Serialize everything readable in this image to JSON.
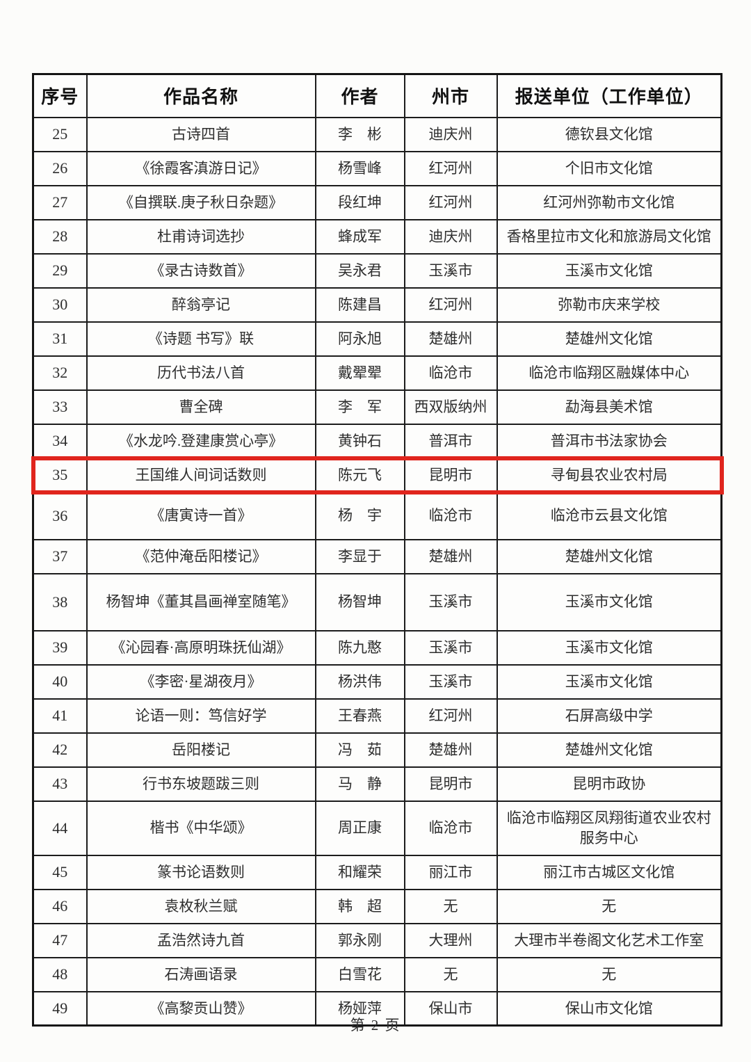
{
  "colors": {
    "highlight_border": "#e0251d"
  },
  "table": {
    "headers": [
      "序号",
      "作品名称",
      "作者",
      "州市",
      "报送单位（工作单位）"
    ],
    "highlighted_no": "35",
    "rows": [
      {
        "no": "25",
        "work": "古诗四首",
        "author": "李　彬",
        "city": "迪庆州",
        "unit": "德钦县文化馆"
      },
      {
        "no": "26",
        "work": "《徐霞客滇游日记》",
        "author": "杨雪峰",
        "city": "红河州",
        "unit": "个旧市文化馆"
      },
      {
        "no": "27",
        "work": "《自撰联.庚子秋日杂题》",
        "author": "段红坤",
        "city": "红河州",
        "unit": "红河州弥勒市文化馆"
      },
      {
        "no": "28",
        "work": "杜甫诗词选抄",
        "author": "蜂成军",
        "city": "迪庆州",
        "unit": "香格里拉市文化和旅游局文化馆"
      },
      {
        "no": "29",
        "work": "《录古诗数首》",
        "author": "吴永君",
        "city": "玉溪市",
        "unit": "玉溪市文化馆"
      },
      {
        "no": "30",
        "work": "醉翁亭记",
        "author": "陈建昌",
        "city": "红河州",
        "unit": "弥勒市庆来学校"
      },
      {
        "no": "31",
        "work": "《诗题 书写》联",
        "author": "阿永旭",
        "city": "楚雄州",
        "unit": "楚雄州文化馆"
      },
      {
        "no": "32",
        "work": "历代书法八首",
        "author": "戴翚翚",
        "city": "临沧市",
        "unit": "临沧市临翔区融媒体中心"
      },
      {
        "no": "33",
        "work": "曹全碑",
        "author": "李　军",
        "city": "西双版纳州",
        "unit": "勐海县美术馆"
      },
      {
        "no": "34",
        "work": "《水龙吟.登建康赏心亭》",
        "author": "黄钟石",
        "city": "普洱市",
        "unit": "普洱市书法家协会"
      },
      {
        "no": "35",
        "work": "王国维人间词话数则",
        "author": "陈元飞",
        "city": "昆明市",
        "unit": "寻甸县农业农村局"
      },
      {
        "no": "36",
        "work": "《唐寅诗一首》",
        "author": "杨　宇",
        "city": "临沧市",
        "unit": "临沧市云县文化馆"
      },
      {
        "no": "37",
        "work": "《范仲淹岳阳楼记》",
        "author": "李显于",
        "city": "楚雄州",
        "unit": "楚雄州文化馆"
      },
      {
        "no": "38",
        "work": "杨智坤《董其昌画禅室随笔》",
        "author": "杨智坤",
        "city": "玉溪市",
        "unit": "玉溪市文化馆"
      },
      {
        "no": "39",
        "work": "《沁园春·高原明珠抚仙湖》",
        "author": "陈九憨",
        "city": "玉溪市",
        "unit": "玉溪市文化馆"
      },
      {
        "no": "40",
        "work": "《李密·星湖夜月》",
        "author": "杨洪伟",
        "city": "玉溪市",
        "unit": "玉溪市文化馆"
      },
      {
        "no": "41",
        "work": "论语一则：笃信好学",
        "author": "王春燕",
        "city": "红河州",
        "unit": "石屏高级中学"
      },
      {
        "no": "42",
        "work": "岳阳楼记",
        "author": "冯　茹",
        "city": "楚雄州",
        "unit": "楚雄州文化馆"
      },
      {
        "no": "43",
        "work": "行书东坡题跋三则",
        "author": "马　静",
        "city": "昆明市",
        "unit": "昆明市政协"
      },
      {
        "no": "44",
        "work": "楷书《中华颂》",
        "author": "周正康",
        "city": "临沧市",
        "unit": "临沧市临翔区凤翔街道农业农村服务中心"
      },
      {
        "no": "45",
        "work": "篆书论语数则",
        "author": "和耀荣",
        "city": "丽江市",
        "unit": "丽江市古城区文化馆"
      },
      {
        "no": "46",
        "work": "袁枚秋兰赋",
        "author": "韩　超",
        "city": "无",
        "unit": "无"
      },
      {
        "no": "47",
        "work": "孟浩然诗九首",
        "author": "郭永刚",
        "city": "大理州",
        "unit": "大理市半卷阁文化艺术工作室"
      },
      {
        "no": "48",
        "work": "石涛画语录",
        "author": "白雪花",
        "city": "无",
        "unit": "无"
      },
      {
        "no": "49",
        "work": "《高黎贡山赞》",
        "author": "杨娅萍",
        "city": "保山市",
        "unit": "保山市文化馆"
      }
    ]
  },
  "footer": {
    "page_label": "第 2 页"
  }
}
